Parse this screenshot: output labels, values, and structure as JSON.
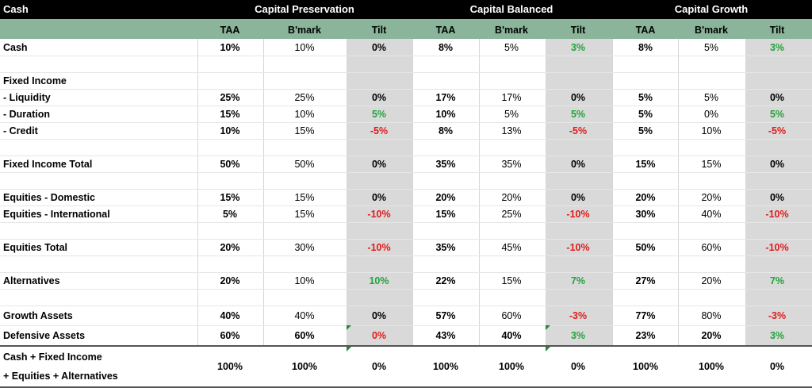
{
  "header": {
    "corner_label": "Cash",
    "groups": [
      "Capital Preservation",
      "Capital Balanced",
      "Capital Growth"
    ]
  },
  "subheader": [
    "TAA",
    "B'mark",
    "Tilt",
    "TAA",
    "B'mark",
    "Tilt",
    "TAA",
    "B'mark",
    "Tilt"
  ],
  "rows": [
    {
      "label": "Cash",
      "values": [
        "10%",
        "10%",
        "0%",
        "8%",
        "5%",
        "3%",
        "8%",
        "5%",
        "3%"
      ]
    },
    {
      "label": "",
      "values": []
    },
    {
      "label": "Fixed Income",
      "values": []
    },
    {
      "label": " - Liquidity",
      "values": [
        "25%",
        "25%",
        "0%",
        "17%",
        "17%",
        "0%",
        "5%",
        "5%",
        "0%"
      ]
    },
    {
      "label": " - Duration",
      "values": [
        "15%",
        "10%",
        "5%",
        "10%",
        "5%",
        "5%",
        "5%",
        "0%",
        "5%"
      ]
    },
    {
      "label": " - Credit",
      "values": [
        "10%",
        "15%",
        "-5%",
        "8%",
        "13%",
        "-5%",
        "5%",
        "10%",
        "-5%"
      ]
    },
    {
      "label": "",
      "values": []
    },
    {
      "label": "Fixed Income Total",
      "values": [
        "50%",
        "50%",
        "0%",
        "35%",
        "35%",
        "0%",
        "15%",
        "15%",
        "0%"
      ]
    },
    {
      "label": "",
      "values": []
    },
    {
      "label": "Equities - Domestic",
      "values": [
        "15%",
        "15%",
        "0%",
        "20%",
        "20%",
        "0%",
        "20%",
        "20%",
        "0%"
      ]
    },
    {
      "label": "Equities - International",
      "values": [
        "5%",
        "15%",
        "-10%",
        "15%",
        "25%",
        "-10%",
        "30%",
        "40%",
        "-10%"
      ]
    },
    {
      "label": "",
      "values": []
    },
    {
      "label": "Equities Total",
      "values": [
        "20%",
        "30%",
        "-10%",
        "35%",
        "45%",
        "-10%",
        "50%",
        "60%",
        "-10%"
      ]
    },
    {
      "label": "",
      "values": []
    },
    {
      "label": "Alternatives",
      "values": [
        "20%",
        "10%",
        "10%",
        "22%",
        "15%",
        "7%",
        "27%",
        "20%",
        "7%"
      ]
    },
    {
      "label": "",
      "values": []
    },
    {
      "label": "Growth Assets",
      "values": [
        "40%",
        "40%",
        "0%",
        "57%",
        "60%",
        "-3%",
        "77%",
        "80%",
        "-3%"
      ]
    },
    {
      "label": "Defensive Assets",
      "values": [
        "60%",
        "60%",
        "0%",
        "43%",
        "40%",
        "3%",
        "23%",
        "20%",
        "3%"
      ]
    }
  ],
  "total": {
    "label_line1": "Cash + Fixed Income",
    "label_line2": "+ Equities + Alternatives",
    "values": [
      "100%",
      "100%",
      "0%",
      "100%",
      "100%",
      "0%",
      "100%",
      "100%",
      "0%"
    ]
  },
  "colors": {
    "header_bg": "#000000",
    "subheader_bg": "#8ab59a",
    "tilt_bg": "#d9d9d9",
    "positive": "#22a33a",
    "negative": "#e01b1b",
    "comment_marker": "#1e8a34"
  }
}
